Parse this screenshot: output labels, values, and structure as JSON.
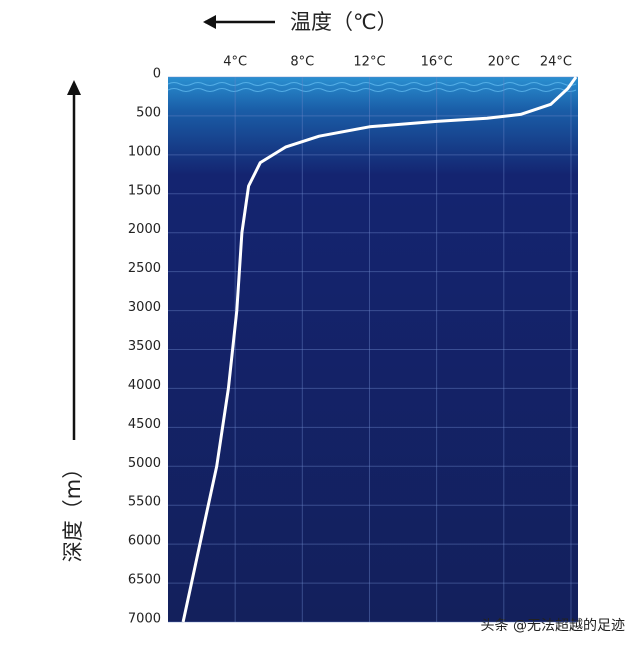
{
  "chart_data": {
    "type": "line",
    "x_label": "温度（℃）",
    "y_label": "深度（m）",
    "x": [
      24.3,
      23.8,
      22.8,
      21,
      19,
      16,
      12,
      9,
      7,
      5.5,
      4.8,
      4.4,
      4.1,
      3.6,
      2.9,
      2.2,
      1.4,
      0.9
    ],
    "values": [
      0,
      150,
      350,
      480,
      530,
      570,
      640,
      760,
      900,
      1100,
      1400,
      2000,
      3000,
      4000,
      5000,
      5700,
      6500,
      7000
    ],
    "color": "#ffffff",
    "xlim": [
      0,
      24.3
    ],
    "xticks": [
      {
        "value": 4,
        "label": "4°C"
      },
      {
        "value": 8,
        "label": "8°C"
      },
      {
        "value": 12,
        "label": "12°C"
      },
      {
        "value": 16,
        "label": "16°C"
      },
      {
        "value": 20,
        "label": "20°C"
      },
      {
        "value": 24,
        "label": "24°C"
      }
    ],
    "ylim": [
      0,
      7000
    ],
    "yticks": [
      0,
      500,
      1000,
      1500,
      2000,
      2500,
      3000,
      3500,
      4000,
      4500,
      5000,
      5500,
      6000,
      6500,
      7000
    ],
    "grid": true,
    "watermark": "头条 @无法超越的足迹"
  }
}
